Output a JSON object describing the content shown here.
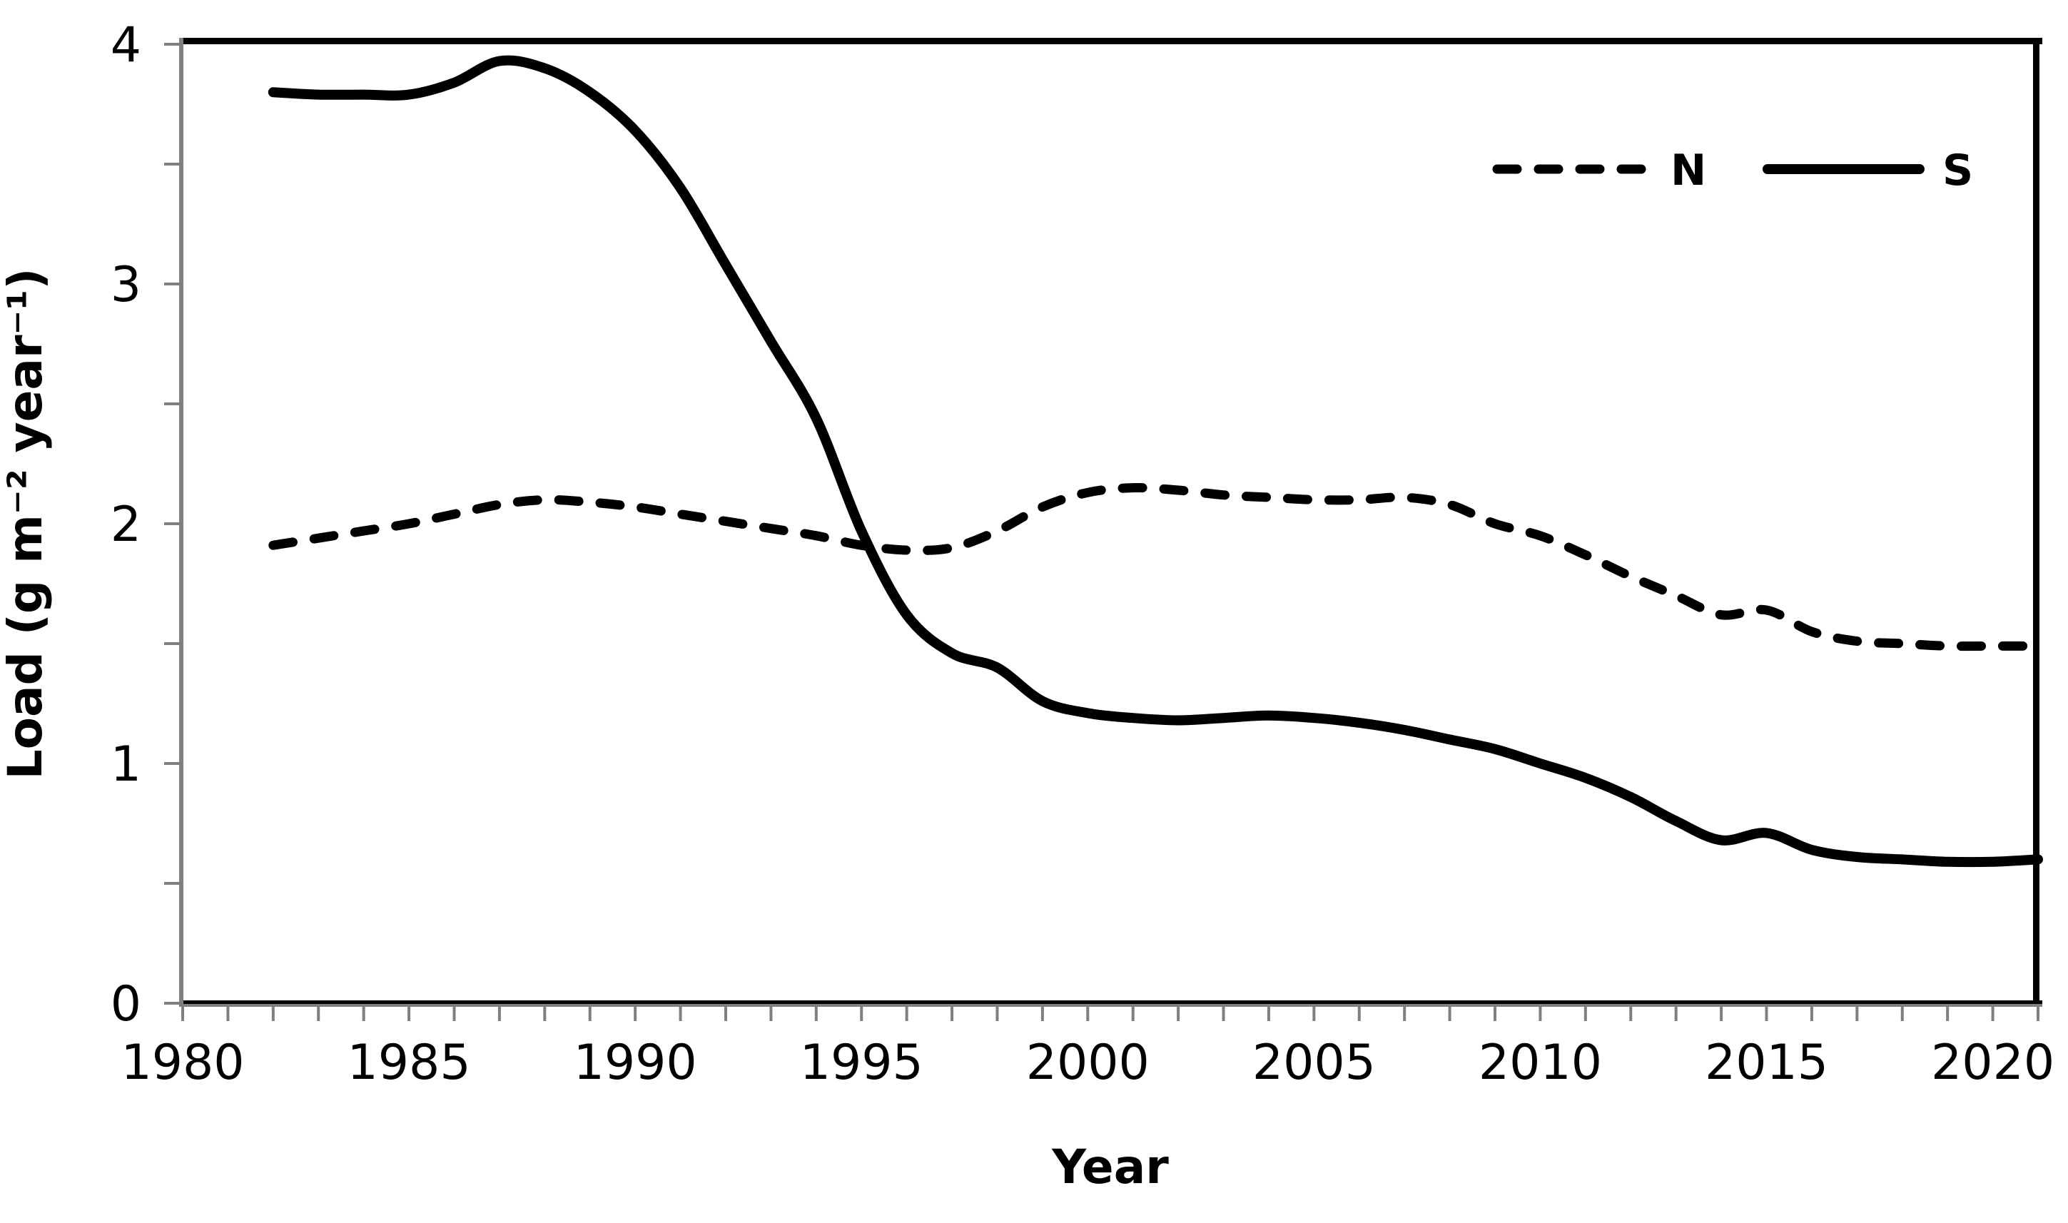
{
  "chart_data": {
    "type": "line",
    "title": "",
    "xlabel": "Year",
    "ylabel": "Load (g m⁻² year⁻¹)",
    "xlim": [
      1980,
      2021
    ],
    "ylim": [
      0,
      4
    ],
    "x_major_ticks": [
      1980,
      1985,
      1990,
      1995,
      2000,
      2005,
      2010,
      2015,
      2020
    ],
    "x_minor_step": 1,
    "y_major_ticks": [
      0,
      1,
      2,
      3,
      4
    ],
    "y_minor_step": 0.5,
    "grid": false,
    "legend_position": "top-right-inside",
    "line_color": "#000000",
    "axis_color": "#7f7f7f",
    "border_color": "#000000",
    "x": [
      1982,
      1983,
      1984,
      1985,
      1986,
      1987,
      1988,
      1989,
      1990,
      1991,
      1992,
      1993,
      1994,
      1995,
      1996,
      1997,
      1998,
      1999,
      2000,
      2001,
      2002,
      2003,
      2004,
      2005,
      2006,
      2007,
      2008,
      2009,
      2010,
      2011,
      2012,
      2013,
      2014,
      2015,
      2016,
      2017,
      2018,
      2019,
      2020,
      2021
    ],
    "series": [
      {
        "name": "N",
        "line_style": "dashed",
        "color": "#000000",
        "values": [
          1.91,
          1.94,
          1.97,
          2.0,
          2.04,
          2.08,
          2.1,
          2.09,
          2.07,
          2.04,
          2.01,
          1.98,
          1.95,
          1.91,
          1.89,
          1.9,
          1.97,
          2.07,
          2.13,
          2.15,
          2.14,
          2.12,
          2.11,
          2.1,
          2.1,
          2.11,
          2.08,
          2.0,
          1.95,
          1.87,
          1.78,
          1.7,
          1.62,
          1.64,
          1.55,
          1.51,
          1.5,
          1.49,
          1.49,
          1.49
        ]
      },
      {
        "name": "S",
        "line_style": "solid",
        "color": "#000000",
        "values": [
          3.8,
          3.79,
          3.79,
          3.79,
          3.84,
          3.93,
          3.9,
          3.8,
          3.64,
          3.4,
          3.08,
          2.76,
          2.44,
          1.97,
          1.62,
          1.46,
          1.4,
          1.26,
          1.21,
          1.19,
          1.18,
          1.19,
          1.2,
          1.19,
          1.17,
          1.14,
          1.1,
          1.06,
          1.0,
          0.94,
          0.86,
          0.76,
          0.68,
          0.71,
          0.64,
          0.61,
          0.6,
          0.59,
          0.59,
          0.6
        ]
      }
    ]
  }
}
